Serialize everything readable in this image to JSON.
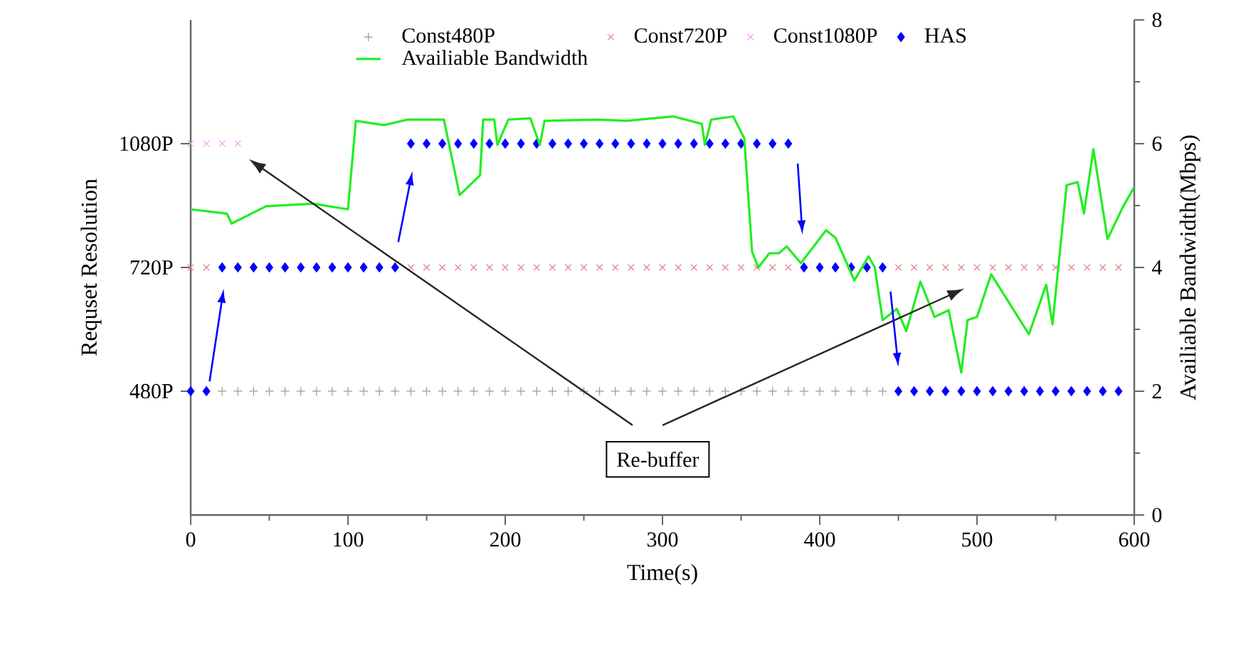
{
  "chart_data": {
    "type": "scatter",
    "xlabel": "Time(s)",
    "ylabel": "Requset Resolution",
    "y2label": "Availiable Bandwidth(Mbps)",
    "xlim": [
      0,
      600
    ],
    "xticks": [
      0,
      100,
      200,
      300,
      400,
      500,
      600
    ],
    "log": "y",
    "ylim": [
      320,
      1620
    ],
    "yticks": [
      {
        "value": 480,
        "label": "480P"
      },
      {
        "value": 720,
        "label": "720P"
      },
      {
        "value": 1080,
        "label": "1080P"
      }
    ],
    "y2lim": [
      0,
      8
    ],
    "y2ticks": [
      0,
      2,
      4,
      6,
      8
    ],
    "legend": "top",
    "grid": false,
    "marker": "diamond",
    "annotations": [
      "Re-buffer"
    ],
    "series": [
      {
        "name": "Const480P",
        "marker": "plus",
        "color": "#999999",
        "x": [
          20,
          30,
          40,
          50,
          60,
          70,
          80,
          90,
          100,
          110,
          120,
          130,
          140,
          150,
          160,
          170,
          180,
          190,
          200,
          210,
          220,
          230,
          240,
          250,
          260,
          270,
          280,
          290,
          300,
          310,
          320,
          330,
          340,
          350,
          360,
          370,
          380,
          390,
          400,
          410,
          420,
          430,
          440
        ],
        "values": [
          480,
          480,
          480,
          480,
          480,
          480,
          480,
          480,
          480,
          480,
          480,
          480,
          480,
          480,
          480,
          480,
          480,
          480,
          480,
          480,
          480,
          480,
          480,
          480,
          480,
          480,
          480,
          480,
          480,
          480,
          480,
          480,
          480,
          480,
          480,
          480,
          480,
          480,
          480,
          480,
          480,
          480,
          480
        ]
      },
      {
        "name": "Const720P",
        "marker": "cross",
        "color": "#f08080",
        "x": [
          0,
          10,
          20,
          30,
          40,
          50,
          60,
          70,
          80,
          90,
          100,
          110,
          120,
          130,
          140,
          150,
          160,
          170,
          180,
          190,
          200,
          210,
          220,
          230,
          240,
          250,
          260,
          270,
          280,
          290,
          300,
          310,
          320,
          330,
          340,
          350,
          360,
          370,
          380,
          390,
          400,
          410,
          420,
          430,
          440,
          450,
          460,
          470,
          480,
          490,
          500,
          510,
          520,
          530,
          540,
          550,
          560,
          570,
          580,
          590
        ],
        "values": [
          720,
          720,
          null,
          null,
          null,
          null,
          null,
          null,
          null,
          null,
          null,
          null,
          null,
          null,
          720,
          720,
          720,
          720,
          720,
          720,
          720,
          720,
          720,
          720,
          720,
          720,
          720,
          720,
          720,
          720,
          720,
          720,
          720,
          720,
          720,
          720,
          720,
          720,
          720,
          null,
          null,
          null,
          null,
          null,
          null,
          720,
          720,
          720,
          720,
          720,
          720,
          720,
          720,
          720,
          720,
          720,
          720,
          720,
          720,
          720
        ]
      },
      {
        "name": "Const1080P",
        "marker": "cross",
        "color": "#ff99ff",
        "x": [
          0,
          10,
          20,
          30
        ],
        "values": [
          1080,
          1080,
          1080,
          1080
        ]
      },
      {
        "name": "HAS",
        "color": "#0000ff",
        "x": [
          0,
          10,
          20,
          30,
          40,
          50,
          60,
          70,
          80,
          90,
          100,
          110,
          120,
          130,
          140,
          150,
          160,
          170,
          180,
          190,
          200,
          210,
          220,
          230,
          240,
          250,
          260,
          270,
          280,
          290,
          300,
          310,
          320,
          330,
          340,
          350,
          360,
          370,
          380,
          390,
          400,
          410,
          420,
          430,
          440,
          450,
          460,
          470,
          480,
          490,
          500,
          510,
          520,
          530,
          540,
          550,
          560,
          570,
          580,
          590
        ],
        "values": [
          480,
          480,
          720,
          720,
          720,
          720,
          720,
          720,
          720,
          720,
          720,
          720,
          720,
          720,
          1080,
          1080,
          1080,
          1080,
          1080,
          1080,
          1080,
          1080,
          1080,
          1080,
          1080,
          1080,
          1080,
          1080,
          1080,
          1080,
          1080,
          1080,
          1080,
          1080,
          1080,
          1080,
          1080,
          1080,
          1080,
          720,
          720,
          720,
          720,
          720,
          720,
          480,
          480,
          480,
          480,
          480,
          480,
          480,
          480,
          480,
          480,
          480,
          480,
          480,
          480,
          480
        ]
      },
      {
        "name": "Availiable Bandwidth",
        "type": "line",
        "marker": "none",
        "line_style": "solid",
        "axis": "y2",
        "color": "#22ee22",
        "x": [
          0,
          23,
          26,
          48,
          78,
          100,
          105,
          123,
          138,
          161,
          171,
          184,
          186,
          193,
          195,
          202,
          216,
          222,
          225,
          259,
          277,
          307,
          325,
          327,
          331,
          345,
          352,
          357,
          361,
          368,
          374,
          379,
          388,
          404,
          410,
          422,
          431,
          435,
          440,
          449,
          455,
          464,
          473,
          482,
          490,
          494,
          500,
          509,
          533,
          544,
          548,
          557,
          564,
          568,
          574,
          583,
          593,
          600
        ],
        "values": [
          4.94,
          4.87,
          4.71,
          4.99,
          5.03,
          4.94,
          6.37,
          6.3,
          6.39,
          6.39,
          5.17,
          5.49,
          6.39,
          6.39,
          5.98,
          6.39,
          6.41,
          5.98,
          6.37,
          6.39,
          6.37,
          6.44,
          6.32,
          5.98,
          6.39,
          6.44,
          6.09,
          4.25,
          4.0,
          4.23,
          4.23,
          4.34,
          4.07,
          4.6,
          4.48,
          3.79,
          4.18,
          4.0,
          3.15,
          3.33,
          2.97,
          3.77,
          3.2,
          3.31,
          2.3,
          3.15,
          3.2,
          3.89,
          2.92,
          3.72,
          3.08,
          5.33,
          5.38,
          4.87,
          5.91,
          4.46,
          4.99,
          5.3
        ]
      }
    ]
  }
}
